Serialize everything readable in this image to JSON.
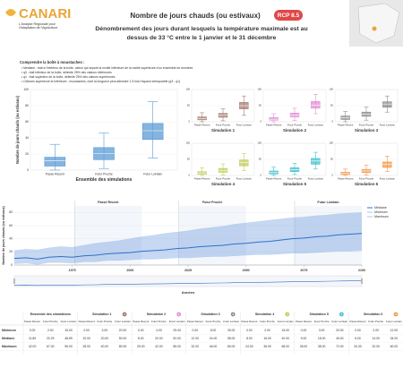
{
  "header": {
    "logo": "CANARI",
    "tagline": [
      "L'Analyse Régionale pour",
      "l'Adaptation de l'Agriculture"
    ],
    "title": "Nombre de jours chauds (ou estivaux)",
    "badge": "RCP 8.5",
    "subtitle": [
      "Dénombrement des jours durant lesquels la température maximale est au",
      "dessus de 33 °C entre le 1 janvier et le 31 décembre"
    ]
  },
  "guide": {
    "title": "Comprendre la boîte à moustaches :",
    "items": [
      "• Médiane : trait à l'intérieur de la boîte, valeur qui sépare la moitié inférieure de la moitié supérieure d'un ensemble de données",
      "• q3 : trait inférieur de la boîte, délimite 25% des valeurs inférieures",
      "• q1 : trait supérieur de la boîte, délimite 25% des valeurs supérieures",
      "• Clôtures supérieure et inférieure : moustaches, dont la longueur peut atteindre 1.5 fois l'espace interquartile (q3 - q1)"
    ]
  },
  "chart_data": [
    {
      "type": "boxplot",
      "xlabel": "Ensemble des simulations",
      "ylabel": "Nombre de jours chauds (ou estivaux)",
      "color": "#5b9bd5",
      "categories": [
        "Passé Récent",
        "Futur Proche",
        "Futur Lointain"
      ],
      "boxes": [
        [
          0,
          5,
          11.89,
          16,
          32
        ],
        [
          2,
          13,
          20.29,
          28,
          46
        ],
        [
          15,
          38,
          48.89,
          58,
          85
        ]
      ],
      "ylim": [
        0,
        100
      ],
      "yticks": [
        0,
        20,
        40,
        60,
        80,
        100
      ]
    },
    {
      "type": "boxplot",
      "xlabel": "Simulation 1",
      "color": "#a57d74",
      "categories": [
        "Passé Récent",
        "Futur Proche",
        "Futur Lointain"
      ],
      "boxes": [
        [
          0,
          6,
          10,
          15,
          28
        ],
        [
          3,
          14,
          20,
          26,
          40
        ],
        [
          20,
          40,
          50,
          60,
          80
        ]
      ],
      "ylim": [
        0,
        100
      ],
      "yticks": [
        0,
        50,
        100
      ]
    },
    {
      "type": "boxplot",
      "xlabel": "Simulation 2",
      "color": "#e48fd6",
      "categories": [
        "Passé Récent",
        "Futur Proche",
        "Futur Lointain"
      ],
      "boxes": [
        [
          0,
          5,
          8,
          13,
          25
        ],
        [
          4,
          15,
          20,
          27,
          42
        ],
        [
          25,
          42,
          52,
          63,
          85
        ]
      ],
      "ylim": [
        0,
        100
      ],
      "yticks": [
        0,
        50,
        100
      ]
    },
    {
      "type": "boxplot",
      "xlabel": "Simulation 3",
      "color": "#8e8e8e",
      "categories": [
        "Passé Récent",
        "Futur Proche",
        "Futur Lointain"
      ],
      "boxes": [
        [
          0,
          7,
          12,
          18,
          32
        ],
        [
          5,
          17,
          24,
          30,
          46
        ],
        [
          30,
          45,
          55,
          62,
          80
        ]
      ],
      "ylim": [
        0,
        100
      ],
      "yticks": [
        0,
        50,
        100
      ]
    },
    {
      "type": "boxplot",
      "xlabel": "Simulation 4",
      "color": "#c2cc5c",
      "categories": [
        "Passé Récent",
        "Futur Proche",
        "Futur Lointain"
      ],
      "boxes": [
        [
          0,
          4,
          8,
          12,
          24
        ],
        [
          2,
          10,
          16,
          22,
          36
        ],
        [
          15,
          30,
          40,
          48,
          68
        ]
      ],
      "ylim": [
        0,
        100
      ],
      "yticks": [
        0,
        50,
        100
      ]
    },
    {
      "type": "boxplot",
      "xlabel": "Simulation 5",
      "color": "#46c1cf",
      "categories": [
        "Passé Récent",
        "Futur Proche",
        "Futur Lointain"
      ],
      "boxes": [
        [
          0,
          5,
          9,
          14,
          26
        ],
        [
          3,
          12,
          18,
          24,
          38
        ],
        [
          20,
          35,
          45,
          53,
          72
        ]
      ],
      "ylim": [
        0,
        100
      ],
      "yticks": [
        0,
        50,
        100
      ]
    },
    {
      "type": "boxplot",
      "xlabel": "Simulation 6",
      "color": "#f29a48",
      "categories": [
        "Passé Récent",
        "Futur Proche",
        "Futur Lointain"
      ],
      "boxes": [
        [
          0,
          3,
          6,
          10,
          20
        ],
        [
          2,
          9,
          14,
          19,
          32
        ],
        [
          12,
          25,
          34,
          42,
          60
        ]
      ],
      "ylim": [
        0,
        100
      ],
      "yticks": [
        0,
        50,
        100
      ]
    },
    {
      "type": "line",
      "xlabel": "Années",
      "ylabel": "Nombre de jours chauds (ou estivaux)",
      "x": [
        1950,
        1955,
        1960,
        1965,
        1970,
        1975,
        1980,
        1985,
        1990,
        1995,
        2000,
        2005,
        2010,
        2015,
        2020,
        2025,
        2030,
        2035,
        2040,
        2045,
        2050,
        2055,
        2060,
        2065,
        2070,
        2075,
        2080,
        2085,
        2090,
        2095,
        2100
      ],
      "series": [
        {
          "name": "Médiane",
          "color": "#2f6fc9",
          "values": [
            10,
            11,
            9,
            12,
            13,
            12,
            14,
            15,
            17,
            18,
            19,
            21,
            22,
            23,
            25,
            26,
            28,
            29,
            30,
            32,
            33,
            35,
            36,
            38,
            40,
            41,
            43,
            44,
            46,
            47,
            48
          ]
        },
        {
          "name": "Minimum",
          "color": "#a9c6ee",
          "values": [
            2,
            3,
            1,
            4,
            4,
            3,
            5,
            5,
            7,
            7,
            8,
            9,
            9,
            10,
            11,
            11,
            12,
            13,
            13,
            14,
            15,
            16,
            16,
            17,
            18,
            18,
            19,
            20,
            21,
            21,
            22
          ]
        },
        {
          "name": "Maximum",
          "color": "#a9c6ee",
          "values": [
            22,
            24,
            23,
            26,
            28,
            27,
            30,
            33,
            35,
            37,
            40,
            43,
            45,
            48,
            50,
            52,
            55,
            57,
            59,
            62,
            64,
            66,
            68,
            70,
            72,
            73,
            75,
            76,
            78,
            79,
            80
          ]
        }
      ],
      "periods": [
        {
          "label": "Passé Récent",
          "start": 1976,
          "end": 2005
        },
        {
          "label": "Futur Proche",
          "start": 2021,
          "end": 2050
        },
        {
          "label": "Futur Lointain",
          "start": 2071,
          "end": 2100
        }
      ],
      "xlim": [
        1950,
        2100
      ],
      "xticks": [
        1975,
        2000,
        2025,
        2050,
        2075,
        2100
      ],
      "ylim": [
        0,
        90
      ],
      "yticks": [
        0,
        20,
        40,
        60,
        80
      ]
    }
  ],
  "table": {
    "groups": [
      "Ensemble des simulations",
      "Simulation 1",
      "Simulation 2",
      "Simulation 3",
      "Simulation 4",
      "Simulation 5",
      "Simulation 6"
    ],
    "group_colors": [
      "#5b9bd5",
      "#a57d74",
      "#e48fd6",
      "#8e8e8e",
      "#c2cc5c",
      "#46c1cf",
      "#f29a48"
    ],
    "badges": [
      "1",
      "2",
      "3",
      "4",
      "5",
      "6"
    ],
    "subheaders": [
      "Passé Récent",
      "Futur Proche",
      "Futur Lointain"
    ],
    "rows": [
      {
        "label": "Minimum",
        "cells": [
          "0.00",
          "2.00",
          "15.00",
          "0.00",
          "3.00",
          "20.00",
          "0.00",
          "4.00",
          "25.00",
          "0.00",
          "5.00",
          "30.00",
          "0.00",
          "2.00",
          "15.00",
          "0.00",
          "3.00",
          "20.00",
          "0.00",
          "2.00",
          "12.00"
        ]
      },
      {
        "label": "Médiane",
        "cells": [
          "11.89",
          "20.29",
          "48.89",
          "10.00",
          "20.00",
          "50.00",
          "8.00",
          "20.00",
          "52.00",
          "12.00",
          "24.00",
          "55.00",
          "8.00",
          "16.00",
          "40.00",
          "9.00",
          "18.00",
          "45.00",
          "6.00",
          "14.00",
          "34.00"
        ]
      },
      {
        "label": "Maximum",
        "cells": [
          "42.00",
          "67.00",
          "96.00",
          "28.00",
          "40.00",
          "80.00",
          "25.00",
          "42.00",
          "85.00",
          "32.00",
          "46.00",
          "80.00",
          "24.00",
          "36.00",
          "68.00",
          "26.00",
          "38.00",
          "72.00",
          "20.00",
          "32.00",
          "60.00"
        ]
      }
    ]
  }
}
